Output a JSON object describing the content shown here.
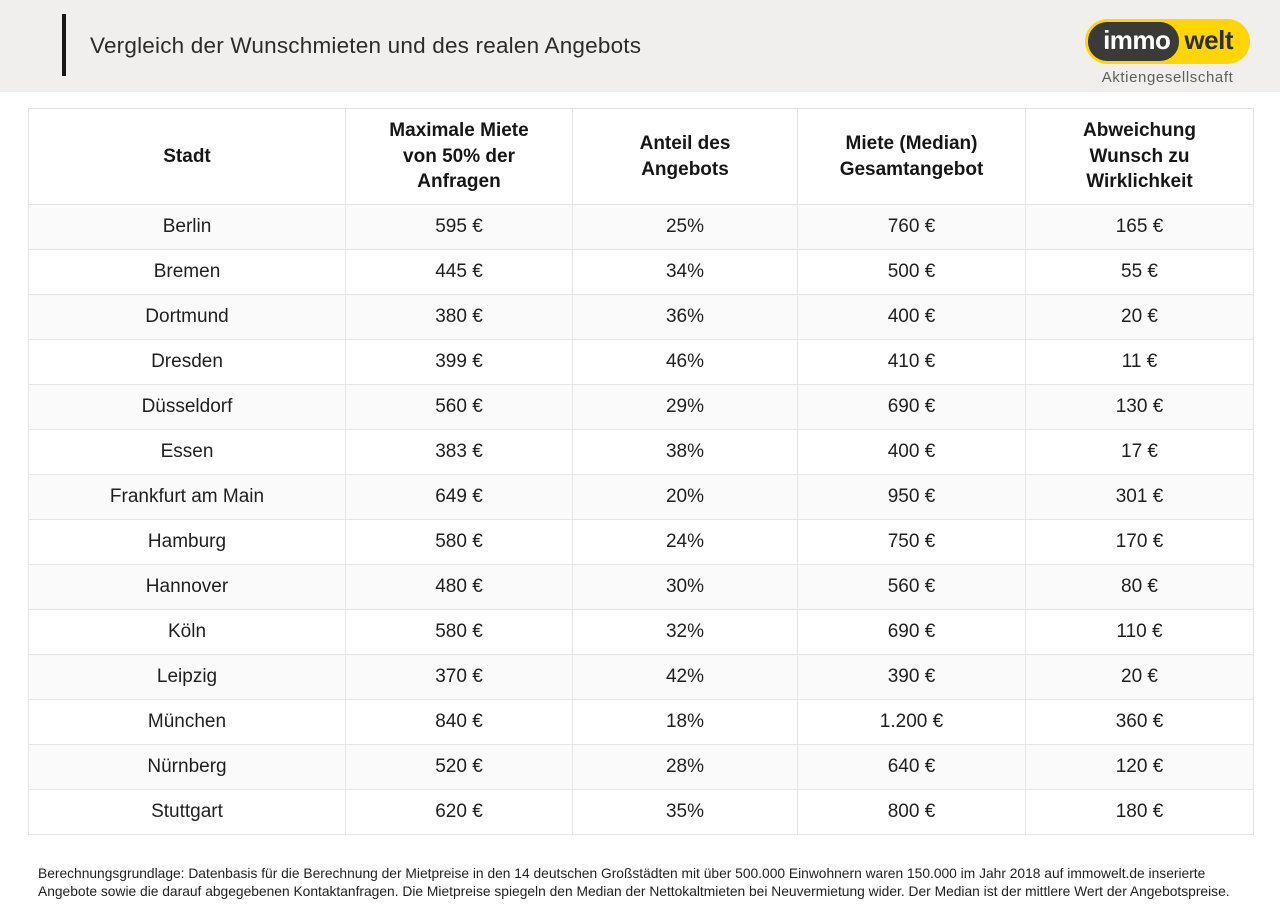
{
  "header": {
    "title": "Vergleich der Wunschmieten und des realen Angebots",
    "logo": {
      "part1": "immo",
      "part2": "welt",
      "subtitle": "Aktiengesellschaft"
    }
  },
  "colors": {
    "brand_yellow": "#ffd505",
    "logo_dark": "#3a3a38",
    "header_band": "#f0efee",
    "table_border": "#e3e3e3",
    "accent_bar": "#161616"
  },
  "chart_data": {
    "type": "table",
    "title": "Vergleich der Wunschmieten und des realen Angebots",
    "columns": [
      "Stadt",
      "Maximale Miete von 50% der Anfragen",
      "Anteil des Angebots",
      "Miete (Median) Gesamtangebot",
      "Abweichung Wunsch zu Wirklichkeit"
    ],
    "rows": [
      [
        "Berlin",
        "595 €",
        "25%",
        "760 €",
        "165 €"
      ],
      [
        "Bremen",
        "445 €",
        "34%",
        "500 €",
        "55 €"
      ],
      [
        "Dortmund",
        "380 €",
        "36%",
        "400 €",
        "20 €"
      ],
      [
        "Dresden",
        "399 €",
        "46%",
        "410 €",
        "11 €"
      ],
      [
        "Düsseldorf",
        "560 €",
        "29%",
        "690 €",
        "130 €"
      ],
      [
        "Essen",
        "383 €",
        "38%",
        "400 €",
        "17 €"
      ],
      [
        "Frankfurt am Main",
        "649 €",
        "20%",
        "950 €",
        "301 €"
      ],
      [
        "Hamburg",
        "580 €",
        "24%",
        "750 €",
        "170 €"
      ],
      [
        "Hannover",
        "480 €",
        "30%",
        "560 €",
        "80 €"
      ],
      [
        "Köln",
        "580 €",
        "32%",
        "690 €",
        "110 €"
      ],
      [
        "Leipzig",
        "370 €",
        "42%",
        "390 €",
        "20 €"
      ],
      [
        "München",
        "840 €",
        "18%",
        "1.200 €",
        "360 €"
      ],
      [
        "Nürnberg",
        "520 €",
        "28%",
        "640 €",
        "120 €"
      ],
      [
        "Stuttgart",
        "620 €",
        "35%",
        "800 €",
        "180 €"
      ]
    ]
  },
  "footer": {
    "note": "Berechnungsgrundlage: Datenbasis für die Berechnung der Mietpreise in den 14 deutschen Großstädten mit über 500.000 Einwohnern waren 150.000 im Jahr 2018 auf immowelt.de inserierte Angebote sowie die darauf abgegebenen Kontaktanfragen. Die Mietpreise spiegeln den Median der Nettokaltmieten bei Neuvermietung wider. Der Median ist der mittlere Wert der Angebotspreise."
  }
}
